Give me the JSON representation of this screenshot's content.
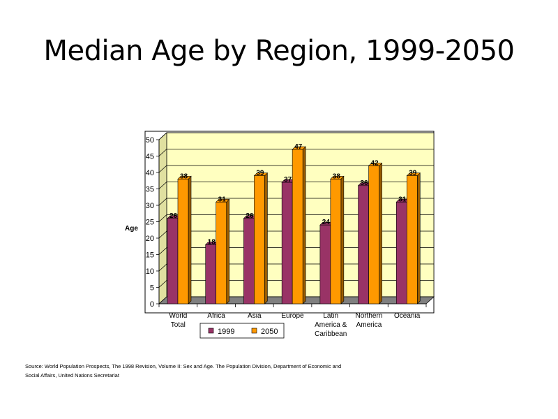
{
  "slide": {
    "title": "Median Age by Region, 1999-2050",
    "source": "Source: World Population Prospects, The 1998 Revision, Volume II: Sex and Age. The Population Division, Department of Economic and Social Affairs, United Nations Secretariat"
  },
  "colors": {
    "wall": "#ffffc0",
    "floor": "#808080",
    "series_1999": "#993366",
    "series_1999_side": "#5c1f3d",
    "series_2050": "#ff9900",
    "series_2050_side": "#995c00"
  },
  "chart_data": {
    "type": "bar",
    "title": "",
    "xlabel": "",
    "ylabel": "Age",
    "ylim": [
      0,
      50
    ],
    "yticks": [
      0,
      5,
      10,
      15,
      20,
      25,
      30,
      35,
      40,
      45,
      50
    ],
    "grid": true,
    "legend": "bottom",
    "categories": [
      [
        "World",
        "Total"
      ],
      [
        "Africa"
      ],
      [
        "Asia"
      ],
      [
        "Europe"
      ],
      [
        "Latin",
        "America &",
        "Caribbean"
      ],
      [
        "Northern",
        "America"
      ],
      [
        "Oceania"
      ]
    ],
    "series": [
      {
        "name": "1999",
        "values": [
          26,
          18,
          26,
          37,
          24,
          36,
          31
        ]
      },
      {
        "name": "2050",
        "values": [
          38,
          31,
          39,
          47,
          38,
          42,
          39
        ]
      }
    ]
  }
}
